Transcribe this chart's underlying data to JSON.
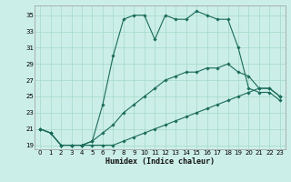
{
  "xlabel": "Humidex (Indice chaleur)",
  "bg_color": "#cceee8",
  "line_color": "#1a6b5a",
  "grid_color": "#aaddcc",
  "xlim": [
    -0.5,
    23.5
  ],
  "ylim": [
    18.5,
    36.2
  ],
  "xticks": [
    0,
    1,
    2,
    3,
    4,
    5,
    6,
    7,
    8,
    9,
    10,
    11,
    12,
    13,
    14,
    15,
    16,
    17,
    18,
    19,
    20,
    21,
    22,
    23
  ],
  "yticks": [
    19,
    21,
    23,
    25,
    27,
    29,
    31,
    33,
    35
  ],
  "series": [
    [
      21,
      20.5,
      19,
      19,
      19,
      19.5,
      24,
      30,
      34.5,
      35,
      35,
      32,
      35,
      34.5,
      34.5,
      35.5,
      35,
      34.5,
      34.5,
      31,
      26,
      25.5,
      25.5,
      24.5
    ],
    [
      21,
      20.5,
      19,
      19,
      19,
      19.5,
      20.5,
      21.5,
      23,
      24,
      25,
      26,
      27,
      27.5,
      28,
      28,
      28.5,
      28.5,
      29,
      28,
      27.5,
      26,
      26,
      25
    ],
    [
      21,
      20.5,
      19,
      19,
      19,
      19,
      19,
      19,
      19.5,
      20,
      20.5,
      21,
      21.5,
      22,
      22.5,
      23,
      23.5,
      24,
      24.5,
      25,
      25.5,
      26,
      26,
      25
    ]
  ]
}
